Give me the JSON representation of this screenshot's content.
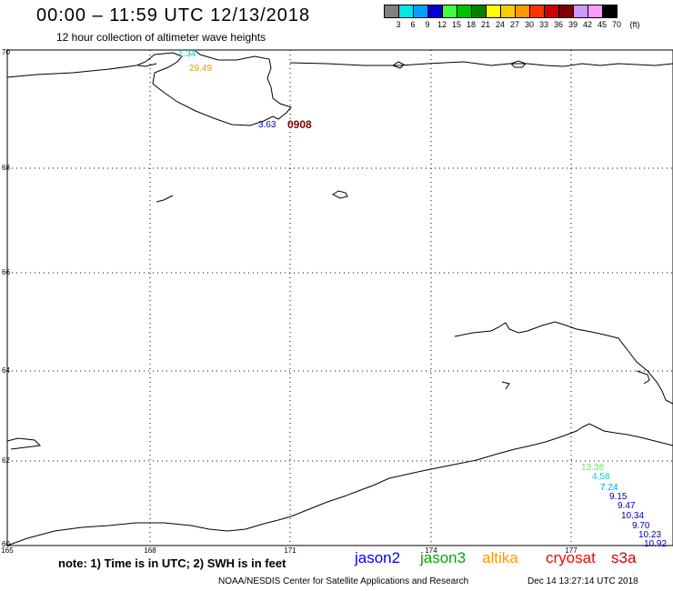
{
  "header": {
    "title": "00:00 – 11:59 UTC 12/13/2018",
    "subtitle": "12 hour collection of altimeter wave heights"
  },
  "scale": {
    "unit": "(ft)",
    "labels": [
      "3",
      "6",
      "9",
      "12",
      "15",
      "18",
      "21",
      "24",
      "27",
      "30",
      "33",
      "36",
      "39",
      "42",
      "45",
      "70"
    ],
    "colors": [
      "#808080",
      "#00e5e5",
      "#00a0ff",
      "#0000d0",
      "#40ff40",
      "#00c000",
      "#008000",
      "#ffff00",
      "#ffcc00",
      "#ff9900",
      "#ff3300",
      "#cc0000",
      "#800000",
      "#cc99ff",
      "#ff99ff",
      "#000000"
    ]
  },
  "map": {
    "lat_labels": [
      "70",
      "68",
      "66",
      "64",
      "62",
      "60"
    ],
    "lon_labels": [
      "165",
      "168",
      "171",
      "174",
      "177"
    ],
    "observations": [
      {
        "text": "1.34",
        "color": "#00c8c8"
      },
      {
        "text": "29.49",
        "color": "#e0a000"
      },
      {
        "text": "3.63",
        "color": "#0000c0"
      },
      {
        "text": "0908",
        "color": "#800000"
      },
      {
        "text": "13.38",
        "color": "#66ee66"
      },
      {
        "text": "4.58",
        "color": "#00d0d0"
      },
      {
        "text": "7.24",
        "color": "#00a0ff"
      },
      {
        "text": "9.15",
        "color": "#0000c0"
      },
      {
        "text": "9.47",
        "color": "#0000c0"
      },
      {
        "text": "10.34",
        "color": "#0000c0"
      },
      {
        "text": "9.70",
        "color": "#0000c0"
      },
      {
        "text": "10.23",
        "color": "#0000c0"
      },
      {
        "text": "10.92",
        "color": "#0000c0"
      }
    ]
  },
  "footer": {
    "note": "note:  1) Time is in UTC;  2) SWH is in feet",
    "legend": [
      {
        "text": "jason2",
        "color": "#0000ff"
      },
      {
        "text": "jason3",
        "color": "#00aa00"
      },
      {
        "text": "altika",
        "color": "#ff9900"
      },
      {
        "text": "cryosat",
        "color": "#ff0000"
      },
      {
        "text": "s3a",
        "color": "#cc0000"
      }
    ],
    "credit": "NOAA/NESDIS Center for Satellite Applications and Research",
    "generated": "Dec 14 13:27:14 UTC 2018"
  }
}
